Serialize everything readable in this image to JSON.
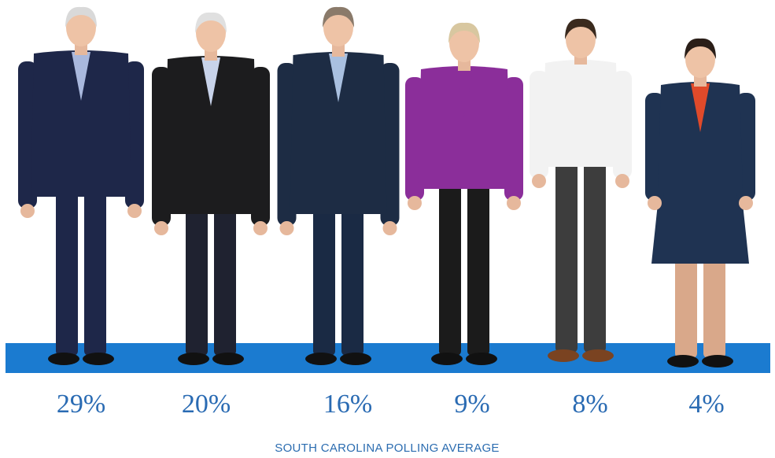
{
  "polls": [
    "29%",
    "20%",
    "16%",
    "9%",
    "8%",
    "4%"
  ],
  "caption": "SOUTH CAROLINA POLLING AVERAGE"
}
